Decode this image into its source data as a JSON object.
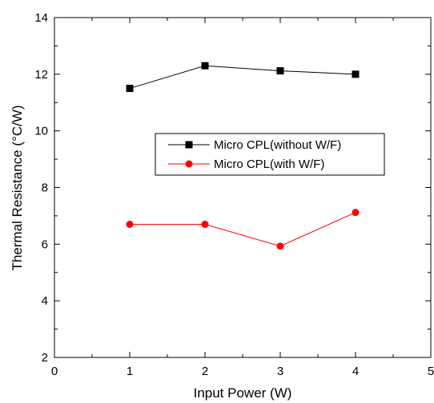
{
  "chart_data": {
    "type": "line",
    "xlabel": "Input Power (W)",
    "ylabel": "Thermal Resistance (°C/W)",
    "xlim": [
      0,
      5
    ],
    "ylim": [
      2,
      14
    ],
    "x_ticks": [
      0,
      1,
      2,
      3,
      4,
      5
    ],
    "y_ticks": [
      2,
      4,
      6,
      8,
      10,
      12,
      14
    ],
    "x_tick_labels": [
      "0",
      "1",
      "2",
      "3",
      "4",
      "5"
    ],
    "y_tick_labels": [
      "2",
      "4",
      "6",
      "8",
      "10",
      "12",
      "14"
    ],
    "grid": false,
    "legend_position": "center",
    "series": [
      {
        "name": "Micro CPL(without W/F)",
        "x": [
          1,
          2,
          3,
          4
        ],
        "y": [
          11.5,
          12.3,
          12.12,
          12.0
        ],
        "color": "#000000",
        "marker": "square"
      },
      {
        "name": "Micro CPL(with W/F)",
        "x": [
          1,
          2,
          3,
          4
        ],
        "y": [
          6.7,
          6.7,
          5.93,
          7.12
        ],
        "color": "#ff0000",
        "marker": "circle"
      }
    ]
  }
}
